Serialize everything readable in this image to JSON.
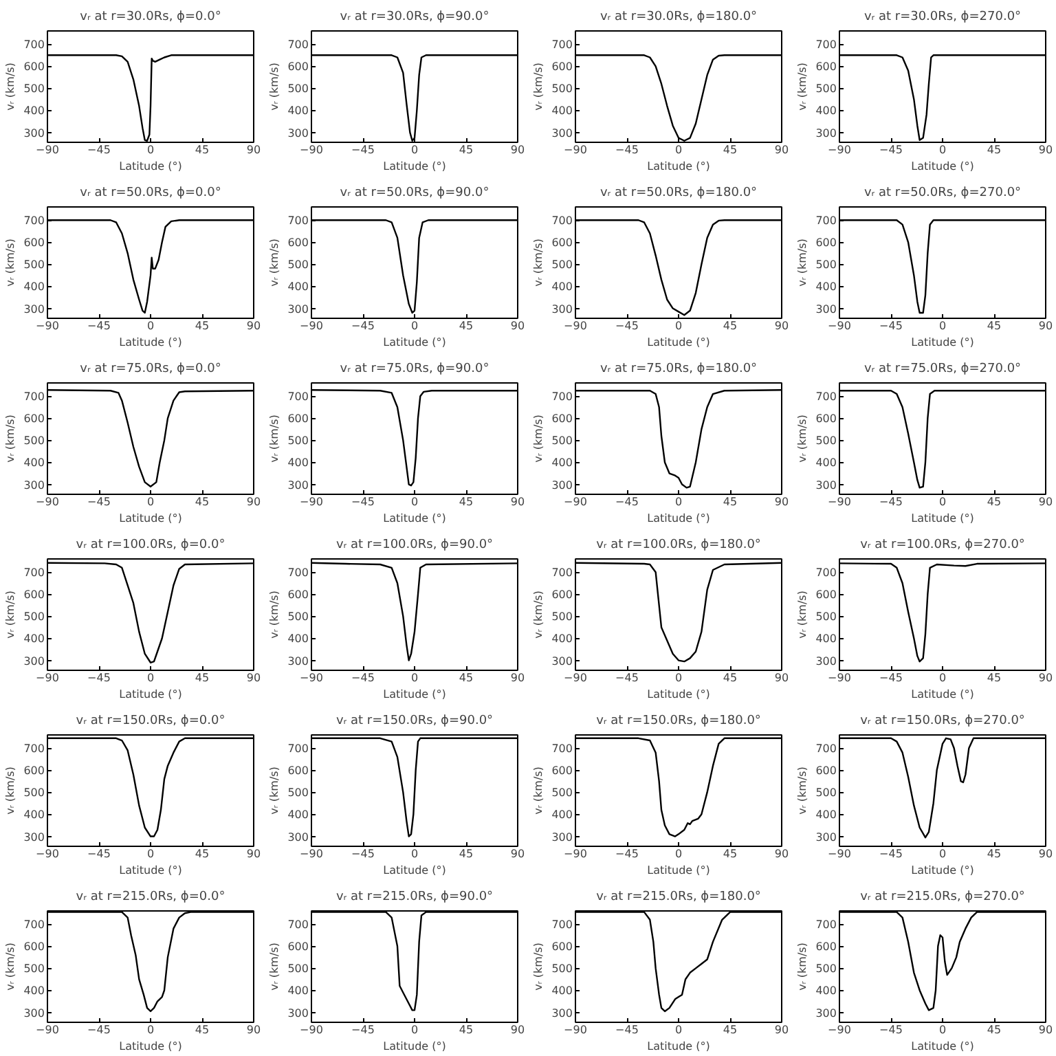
{
  "chart_data": [
    {
      "type": "line",
      "title": "vᵣ at r=30.0Rs, ϕ=0.0°",
      "xlabel": "Latitude (°)",
      "ylabel": "vᵣ (km/s)",
      "color": "#000000",
      "xlim": [
        -90,
        90
      ],
      "ylim": [
        255,
        760
      ],
      "xticks": [
        -90,
        -45,
        0,
        45,
        90
      ],
      "yticks": [
        300,
        400,
        500,
        600,
        700
      ],
      "x": [
        -90,
        -30,
        -25,
        -20,
        -15,
        -10,
        -7,
        -5,
        -3,
        -1,
        0,
        1,
        2,
        4,
        8,
        12,
        18,
        90
      ],
      "values": [
        650,
        650,
        645,
        620,
        540,
        420,
        320,
        265,
        262,
        290,
        420,
        635,
        625,
        620,
        630,
        640,
        650,
        650
      ]
    },
    {
      "type": "line",
      "title": "vᵣ at r=30.0Rs, ϕ=90.0°",
      "xlabel": "Latitude (°)",
      "ylabel": "vᵣ (km/s)",
      "color": "#000000",
      "xlim": [
        -90,
        90
      ],
      "ylim": [
        255,
        760
      ],
      "xticks": [
        -90,
        -45,
        0,
        45,
        90
      ],
      "yticks": [
        300,
        400,
        500,
        600,
        700
      ],
      "x": [
        -90,
        -20,
        -15,
        -10,
        -7,
        -4,
        -2,
        0,
        2,
        4,
        6,
        10,
        90
      ],
      "values": [
        650,
        650,
        640,
        570,
        430,
        300,
        262,
        275,
        400,
        560,
        640,
        650,
        650
      ]
    },
    {
      "type": "line",
      "title": "vᵣ at r=30.0Rs, ϕ=180.0°",
      "xlabel": "Latitude (°)",
      "ylabel": "vᵣ (km/s)",
      "color": "#000000",
      "xlim": [
        -90,
        90
      ],
      "ylim": [
        255,
        760
      ],
      "xticks": [
        -90,
        -45,
        0,
        45,
        90
      ],
      "yticks": [
        300,
        400,
        500,
        600,
        700
      ],
      "x": [
        -90,
        -30,
        -25,
        -20,
        -15,
        -10,
        -5,
        0,
        5,
        10,
        15,
        20,
        25,
        30,
        35,
        40,
        90
      ],
      "values": [
        650,
        650,
        640,
        600,
        520,
        420,
        330,
        275,
        262,
        275,
        340,
        450,
        560,
        630,
        648,
        650,
        650
      ]
    },
    {
      "type": "line",
      "title": "vᵣ at r=30.0Rs, ϕ=270.0°",
      "xlabel": "Latitude (°)",
      "ylabel": "vᵣ (km/s)",
      "color": "#000000",
      "xlim": [
        -90,
        90
      ],
      "ylim": [
        255,
        760
      ],
      "xticks": [
        -90,
        -45,
        0,
        45,
        90
      ],
      "yticks": [
        300,
        400,
        500,
        600,
        700
      ],
      "x": [
        -90,
        -40,
        -35,
        -30,
        -25,
        -22,
        -20,
        -17,
        -14,
        -12,
        -10,
        -8,
        90
      ],
      "values": [
        650,
        650,
        640,
        580,
        450,
        330,
        265,
        275,
        380,
        520,
        640,
        650,
        650
      ]
    },
    {
      "type": "line",
      "title": "vᵣ at r=50.0Rs, ϕ=0.0°",
      "xlabel": "Latitude (°)",
      "ylabel": "vᵣ (km/s)",
      "color": "#000000",
      "xlim": [
        -90,
        90
      ],
      "ylim": [
        255,
        760
      ],
      "xticks": [
        -90,
        -45,
        0,
        45,
        90
      ],
      "yticks": [
        300,
        400,
        500,
        600,
        700
      ],
      "x": [
        -90,
        -35,
        -30,
        -25,
        -20,
        -15,
        -10,
        -7,
        -5,
        -3,
        0,
        1,
        2,
        4,
        7,
        10,
        13,
        18,
        25,
        90
      ],
      "values": [
        700,
        700,
        690,
        640,
        550,
        430,
        340,
        290,
        280,
        330,
        450,
        530,
        480,
        480,
        520,
        600,
        670,
        695,
        700,
        700
      ]
    },
    {
      "type": "line",
      "title": "vᵣ at r=50.0Rs, ϕ=90.0°",
      "xlabel": "Latitude (°)",
      "ylabel": "vᵣ (km/s)",
      "color": "#000000",
      "xlim": [
        -90,
        90
      ],
      "ylim": [
        255,
        760
      ],
      "xticks": [
        -90,
        -45,
        0,
        45,
        90
      ],
      "yticks": [
        300,
        400,
        500,
        600,
        700
      ],
      "x": [
        -90,
        -25,
        -20,
        -15,
        -10,
        -5,
        -2,
        0,
        2,
        4,
        7,
        12,
        90
      ],
      "values": [
        700,
        700,
        690,
        620,
        450,
        320,
        280,
        290,
        420,
        620,
        690,
        700,
        700
      ]
    },
    {
      "type": "line",
      "title": "vᵣ at r=50.0Rs, ϕ=180.0°",
      "xlabel": "Latitude (°)",
      "ylabel": "vᵣ (km/s)",
      "color": "#000000",
      "xlim": [
        -90,
        90
      ],
      "ylim": [
        255,
        760
      ],
      "xticks": [
        -90,
        -45,
        0,
        45,
        90
      ],
      "yticks": [
        300,
        400,
        500,
        600,
        700
      ],
      "x": [
        -90,
        -35,
        -30,
        -25,
        -20,
        -15,
        -10,
        -5,
        0,
        5,
        10,
        15,
        20,
        25,
        30,
        35,
        40,
        90
      ],
      "values": [
        700,
        700,
        690,
        640,
        540,
        430,
        340,
        300,
        285,
        270,
        290,
        370,
        500,
        620,
        680,
        698,
        700,
        700
      ]
    },
    {
      "type": "line",
      "title": "vᵣ at r=50.0Rs, ϕ=270.0°",
      "xlabel": "Latitude (°)",
      "ylabel": "vᵣ (km/s)",
      "color": "#000000",
      "xlim": [
        -90,
        90
      ],
      "ylim": [
        255,
        760
      ],
      "xticks": [
        -90,
        -45,
        0,
        45,
        90
      ],
      "yticks": [
        300,
        400,
        500,
        600,
        700
      ],
      "x": [
        -90,
        -40,
        -35,
        -30,
        -25,
        -22,
        -20,
        -17,
        -15,
        -13,
        -11,
        -8,
        90
      ],
      "values": [
        700,
        700,
        680,
        600,
        450,
        330,
        280,
        280,
        360,
        550,
        680,
        700,
        700
      ]
    },
    {
      "type": "line",
      "title": "vᵣ at r=75.0Rs, ϕ=0.0°",
      "xlabel": "Latitude (°)",
      "ylabel": "vᵣ (km/s)",
      "color": "#000000",
      "xlim": [
        -90,
        90
      ],
      "ylim": [
        255,
        760
      ],
      "xticks": [
        -90,
        -45,
        0,
        45,
        90
      ],
      "yticks": [
        300,
        400,
        500,
        600,
        700
      ],
      "x": [
        -90,
        -35,
        -28,
        -25,
        -20,
        -15,
        -10,
        -5,
        0,
        5,
        8,
        12,
        15,
        20,
        25,
        30,
        90
      ],
      "values": [
        728,
        725,
        715,
        680,
        580,
        470,
        380,
        310,
        290,
        310,
        400,
        500,
        600,
        680,
        718,
        722,
        725
      ]
    },
    {
      "type": "line",
      "title": "vᵣ at r=75.0Rs, ϕ=90.0°",
      "xlabel": "Latitude (°)",
      "ylabel": "vᵣ (km/s)",
      "color": "#000000",
      "xlim": [
        -90,
        90
      ],
      "ylim": [
        255,
        760
      ],
      "xticks": [
        -90,
        -45,
        0,
        45,
        90
      ],
      "yticks": [
        300,
        400,
        500,
        600,
        700
      ],
      "x": [
        -90,
        -30,
        -20,
        -15,
        -10,
        -7,
        -5,
        -3,
        -1,
        1,
        3,
        5,
        8,
        15,
        90
      ],
      "values": [
        728,
        725,
        715,
        650,
        500,
        380,
        300,
        295,
        310,
        420,
        600,
        700,
        720,
        725,
        725
      ]
    },
    {
      "type": "line",
      "title": "vᵣ at r=75.0Rs, ϕ=180.0°",
      "xlabel": "Latitude (°)",
      "ylabel": "vᵣ (km/s)",
      "color": "#000000",
      "xlim": [
        -90,
        90
      ],
      "ylim": [
        255,
        760
      ],
      "xticks": [
        -90,
        -45,
        0,
        45,
        90
      ],
      "yticks": [
        300,
        400,
        500,
        600,
        700
      ],
      "x": [
        -90,
        -25,
        -20,
        -17,
        -15,
        -12,
        -8,
        -3,
        0,
        3,
        7,
        10,
        15,
        20,
        25,
        30,
        40,
        90
      ],
      "values": [
        725,
        725,
        710,
        650,
        520,
        400,
        350,
        340,
        330,
        300,
        285,
        290,
        400,
        550,
        650,
        710,
        725,
        728
      ]
    },
    {
      "type": "line",
      "title": "vᵣ at r=75.0Rs, ϕ=270.0°",
      "xlabel": "Latitude (°)",
      "ylabel": "vᵣ (km/s)",
      "color": "#000000",
      "xlim": [
        -90,
        90
      ],
      "ylim": [
        255,
        760
      ],
      "xticks": [
        -90,
        -45,
        0,
        45,
        90
      ],
      "yticks": [
        300,
        400,
        500,
        600,
        700
      ],
      "x": [
        -90,
        -45,
        -40,
        -35,
        -30,
        -25,
        -22,
        -20,
        -17,
        -15,
        -13,
        -11,
        -7,
        90
      ],
      "values": [
        725,
        725,
        710,
        650,
        530,
        400,
        320,
        285,
        290,
        400,
        600,
        710,
        725,
        725
      ]
    },
    {
      "type": "line",
      "title": "vᵣ at r=100.0Rs, ϕ=0.0°",
      "xlabel": "Latitude (°)",
      "ylabel": "vᵣ (km/s)",
      "color": "#000000",
      "xlim": [
        -90,
        90
      ],
      "ylim": [
        255,
        760
      ],
      "xticks": [
        -90,
        -45,
        0,
        45,
        90
      ],
      "yticks": [
        300,
        400,
        500,
        600,
        700
      ],
      "x": [
        -90,
        -40,
        -30,
        -25,
        -20,
        -15,
        -10,
        -5,
        0,
        3,
        6,
        10,
        15,
        20,
        25,
        30,
        90
      ],
      "values": [
        742,
        740,
        735,
        720,
        640,
        560,
        430,
        330,
        290,
        295,
        340,
        400,
        520,
        640,
        715,
        735,
        740
      ]
    },
    {
      "type": "line",
      "title": "vᵣ at r=100.0Rs, ϕ=90.0°",
      "xlabel": "Latitude (°)",
      "ylabel": "vᵣ (km/s)",
      "color": "#000000",
      "xlim": [
        -90,
        90
      ],
      "ylim": [
        255,
        760
      ],
      "xticks": [
        -90,
        -45,
        0,
        45,
        90
      ],
      "yticks": [
        300,
        400,
        500,
        600,
        700
      ],
      "x": [
        -90,
        -60,
        -30,
        -20,
        -15,
        -10,
        -7,
        -5,
        -3,
        0,
        3,
        5,
        10,
        90
      ],
      "values": [
        742,
        738,
        735,
        720,
        650,
        500,
        370,
        300,
        330,
        430,
        600,
        720,
        735,
        740
      ]
    },
    {
      "type": "line",
      "title": "vᵣ at r=100.0Rs, ϕ=180.0°",
      "xlabel": "Latitude (°)",
      "ylabel": "vᵣ (km/s)",
      "color": "#000000",
      "xlim": [
        -90,
        90
      ],
      "ylim": [
        255,
        760
      ],
      "xticks": [
        -90,
        -45,
        0,
        45,
        90
      ],
      "yticks": [
        300,
        400,
        500,
        600,
        700
      ],
      "x": [
        -90,
        -30,
        -25,
        -20,
        -18,
        -15,
        -10,
        -5,
        0,
        5,
        10,
        15,
        20,
        25,
        30,
        40,
        90
      ],
      "values": [
        742,
        738,
        735,
        700,
        600,
        450,
        390,
        330,
        300,
        295,
        310,
        340,
        430,
        620,
        710,
        735,
        742
      ]
    },
    {
      "type": "line",
      "title": "vᵣ at r=100.0Rs, ϕ=270.0°",
      "xlabel": "Latitude (°)",
      "ylabel": "vᵣ (km/s)",
      "color": "#000000",
      "xlim": [
        -90,
        90
      ],
      "ylim": [
        255,
        760
      ],
      "xticks": [
        -90,
        -45,
        0,
        45,
        90
      ],
      "yticks": [
        300,
        400,
        500,
        600,
        700
      ],
      "x": [
        -90,
        -45,
        -40,
        -35,
        -30,
        -25,
        -22,
        -20,
        -17,
        -15,
        -13,
        -11,
        -5,
        10,
        20,
        30,
        90
      ],
      "values": [
        740,
        738,
        720,
        650,
        520,
        400,
        320,
        295,
        310,
        420,
        600,
        720,
        735,
        730,
        728,
        738,
        740
      ]
    },
    {
      "type": "line",
      "title": "vᵣ at r=150.0Rs, ϕ=0.0°",
      "xlabel": "Latitude (°)",
      "ylabel": "vᵣ (km/s)",
      "color": "#000000",
      "xlim": [
        -90,
        90
      ],
      "ylim": [
        255,
        760
      ],
      "xticks": [
        -90,
        -45,
        0,
        45,
        90
      ],
      "yticks": [
        300,
        400,
        500,
        600,
        700
      ],
      "x": [
        -90,
        -30,
        -25,
        -20,
        -15,
        -10,
        -5,
        0,
        3,
        6,
        9,
        12,
        15,
        20,
        25,
        30,
        90
      ],
      "values": [
        745,
        745,
        735,
        690,
        580,
        440,
        340,
        300,
        300,
        330,
        420,
        560,
        620,
        680,
        730,
        745,
        745
      ]
    },
    {
      "type": "line",
      "title": "vᵣ at r=150.0Rs, ϕ=90.0°",
      "xlabel": "Latitude (°)",
      "ylabel": "vᵣ (km/s)",
      "color": "#000000",
      "xlim": [
        -90,
        90
      ],
      "ylim": [
        255,
        760
      ],
      "xticks": [
        -90,
        -45,
        0,
        45,
        90
      ],
      "yticks": [
        300,
        400,
        500,
        600,
        700
      ],
      "x": [
        -90,
        -30,
        -20,
        -15,
        -10,
        -7,
        -5,
        -3,
        -1,
        1,
        3,
        5,
        90
      ],
      "values": [
        745,
        745,
        730,
        660,
        500,
        370,
        300,
        310,
        400,
        600,
        730,
        745,
        745
      ]
    },
    {
      "type": "line",
      "title": "vᵣ at r=150.0Rs, ϕ=180.0°",
      "xlabel": "Latitude (°)",
      "ylabel": "vᵣ (km/s)",
      "color": "#000000",
      "xlim": [
        -90,
        90
      ],
      "ylim": [
        255,
        760
      ],
      "xticks": [
        -90,
        -45,
        0,
        45,
        90
      ],
      "yticks": [
        300,
        400,
        500,
        600,
        700
      ],
      "x": [
        -90,
        -35,
        -25,
        -20,
        -17,
        -15,
        -12,
        -8,
        -3,
        0,
        5,
        8,
        10,
        12,
        17,
        20,
        25,
        30,
        35,
        40,
        90
      ],
      "values": [
        745,
        745,
        735,
        680,
        550,
        420,
        350,
        310,
        300,
        310,
        330,
        360,
        355,
        370,
        380,
        400,
        500,
        620,
        720,
        745,
        745
      ]
    },
    {
      "type": "line",
      "title": "vᵣ at r=150.0Rs, ϕ=270.0°",
      "xlabel": "Latitude (°)",
      "ylabel": "vᵣ (km/s)",
      "color": "#000000",
      "xlim": [
        -90,
        90
      ],
      "ylim": [
        255,
        760
      ],
      "xticks": [
        -90,
        -45,
        0,
        45,
        90
      ],
      "yticks": [
        300,
        400,
        500,
        600,
        700
      ],
      "x": [
        -90,
        -45,
        -40,
        -35,
        -30,
        -25,
        -20,
        -15,
        -12,
        -8,
        -5,
        0,
        3,
        7,
        10,
        13,
        16,
        18,
        20,
        23,
        27,
        90
      ],
      "values": [
        745,
        745,
        730,
        680,
        570,
        440,
        340,
        295,
        320,
        450,
        600,
        720,
        745,
        740,
        700,
        620,
        550,
        545,
        580,
        700,
        745,
        745
      ]
    },
    {
      "type": "line",
      "title": "vᵣ at r=215.0Rs, ϕ=0.0°",
      "xlabel": "Latitude (°)",
      "ylabel": "vᵣ (km/s)",
      "color": "#000000",
      "xlim": [
        -90,
        90
      ],
      "ylim": [
        255,
        760
      ],
      "xticks": [
        -90,
        -45,
        0,
        45,
        90
      ],
      "yticks": [
        300,
        400,
        500,
        600,
        700
      ],
      "x": [
        -90,
        -25,
        -20,
        -17,
        -13,
        -10,
        -6,
        -3,
        0,
        3,
        6,
        10,
        12,
        15,
        20,
        25,
        30,
        35,
        90
      ],
      "values": [
        755,
        755,
        730,
        650,
        560,
        450,
        380,
        320,
        305,
        320,
        350,
        370,
        400,
        550,
        680,
        730,
        750,
        755,
        755
      ]
    },
    {
      "type": "line",
      "title": "vᵣ at r=215.0Rs, ϕ=90.0°",
      "xlabel": "Latitude (°)",
      "ylabel": "vᵣ (km/s)",
      "color": "#000000",
      "xlim": [
        -90,
        90
      ],
      "ylim": [
        255,
        760
      ],
      "xticks": [
        -90,
        -45,
        0,
        45,
        90
      ],
      "yticks": [
        300,
        400,
        500,
        600,
        700
      ],
      "x": [
        -90,
        -25,
        -20,
        -15,
        -13,
        -10,
        -5,
        -2,
        0,
        2,
        4,
        6,
        10,
        90
      ],
      "values": [
        755,
        755,
        730,
        600,
        420,
        390,
        340,
        310,
        310,
        380,
        620,
        740,
        755,
        755
      ]
    },
    {
      "type": "line",
      "title": "vᵣ at r=215.0Rs, ϕ=180.0°",
      "xlabel": "Latitude (°)",
      "ylabel": "vᵣ (km/s)",
      "color": "#000000",
      "xlim": [
        -90,
        90
      ],
      "ylim": [
        255,
        760
      ],
      "xticks": [
        -90,
        -45,
        0,
        45,
        90
      ],
      "yticks": [
        300,
        400,
        500,
        600,
        700
      ],
      "x": [
        -90,
        -30,
        -25,
        -22,
        -20,
        -17,
        -15,
        -12,
        -8,
        -3,
        0,
        3,
        6,
        10,
        15,
        20,
        25,
        30,
        38,
        45,
        90
      ],
      "values": [
        755,
        755,
        720,
        620,
        500,
        380,
        320,
        305,
        320,
        360,
        370,
        380,
        450,
        480,
        500,
        520,
        540,
        620,
        720,
        755,
        755
      ]
    },
    {
      "type": "line",
      "title": "vᵣ at r=215.0Rs, ϕ=270.0°",
      "xlabel": "Latitude (°)",
      "ylabel": "vᵣ (km/s)",
      "color": "#000000",
      "xlim": [
        -90,
        90
      ],
      "ylim": [
        255,
        760
      ],
      "xticks": [
        -90,
        -45,
        0,
        45,
        90
      ],
      "yticks": [
        300,
        400,
        500,
        600,
        700
      ],
      "x": [
        -90,
        -40,
        -35,
        -30,
        -25,
        -20,
        -15,
        -12,
        -8,
        -6,
        -4,
        -2,
        0,
        2,
        4,
        8,
        12,
        15,
        20,
        25,
        30,
        90
      ],
      "values": [
        755,
        755,
        730,
        620,
        480,
        400,
        340,
        310,
        320,
        400,
        600,
        650,
        640,
        530,
        470,
        500,
        550,
        620,
        680,
        730,
        755,
        755
      ]
    }
  ]
}
